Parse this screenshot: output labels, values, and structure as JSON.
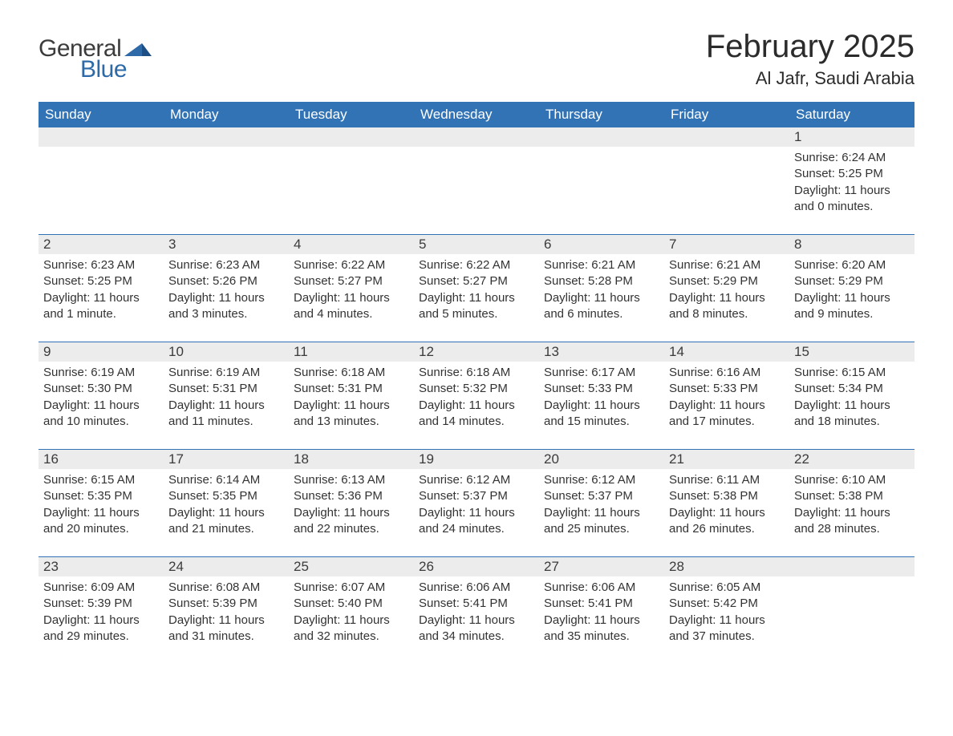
{
  "brand": {
    "word1": "General",
    "word2": "Blue",
    "word1_color": "#3c3c3c",
    "word2_color": "#2f6aa8",
    "shape_color": "#2f6aa8"
  },
  "title": {
    "month_year": "February 2025",
    "location": "Al Jafr, Saudi Arabia",
    "title_fontsize": 40,
    "location_fontsize": 22
  },
  "calendar": {
    "header_bg": "#3273b6",
    "header_fg": "#ffffff",
    "band_bg": "#ececec",
    "rule_color": "#3273b6",
    "day_headers": [
      "Sunday",
      "Monday",
      "Tuesday",
      "Wednesday",
      "Thursday",
      "Friday",
      "Saturday"
    ],
    "weeks": [
      [
        null,
        null,
        null,
        null,
        null,
        null,
        {
          "n": "1",
          "sunrise": "Sunrise: 6:24 AM",
          "sunset": "Sunset: 5:25 PM",
          "day1": "Daylight: 11 hours",
          "day2": "and 0 minutes."
        }
      ],
      [
        {
          "n": "2",
          "sunrise": "Sunrise: 6:23 AM",
          "sunset": "Sunset: 5:25 PM",
          "day1": "Daylight: 11 hours",
          "day2": "and 1 minute."
        },
        {
          "n": "3",
          "sunrise": "Sunrise: 6:23 AM",
          "sunset": "Sunset: 5:26 PM",
          "day1": "Daylight: 11 hours",
          "day2": "and 3 minutes."
        },
        {
          "n": "4",
          "sunrise": "Sunrise: 6:22 AM",
          "sunset": "Sunset: 5:27 PM",
          "day1": "Daylight: 11 hours",
          "day2": "and 4 minutes."
        },
        {
          "n": "5",
          "sunrise": "Sunrise: 6:22 AM",
          "sunset": "Sunset: 5:27 PM",
          "day1": "Daylight: 11 hours",
          "day2": "and 5 minutes."
        },
        {
          "n": "6",
          "sunrise": "Sunrise: 6:21 AM",
          "sunset": "Sunset: 5:28 PM",
          "day1": "Daylight: 11 hours",
          "day2": "and 6 minutes."
        },
        {
          "n": "7",
          "sunrise": "Sunrise: 6:21 AM",
          "sunset": "Sunset: 5:29 PM",
          "day1": "Daylight: 11 hours",
          "day2": "and 8 minutes."
        },
        {
          "n": "8",
          "sunrise": "Sunrise: 6:20 AM",
          "sunset": "Sunset: 5:29 PM",
          "day1": "Daylight: 11 hours",
          "day2": "and 9 minutes."
        }
      ],
      [
        {
          "n": "9",
          "sunrise": "Sunrise: 6:19 AM",
          "sunset": "Sunset: 5:30 PM",
          "day1": "Daylight: 11 hours",
          "day2": "and 10 minutes."
        },
        {
          "n": "10",
          "sunrise": "Sunrise: 6:19 AM",
          "sunset": "Sunset: 5:31 PM",
          "day1": "Daylight: 11 hours",
          "day2": "and 11 minutes."
        },
        {
          "n": "11",
          "sunrise": "Sunrise: 6:18 AM",
          "sunset": "Sunset: 5:31 PM",
          "day1": "Daylight: 11 hours",
          "day2": "and 13 minutes."
        },
        {
          "n": "12",
          "sunrise": "Sunrise: 6:18 AM",
          "sunset": "Sunset: 5:32 PM",
          "day1": "Daylight: 11 hours",
          "day2": "and 14 minutes."
        },
        {
          "n": "13",
          "sunrise": "Sunrise: 6:17 AM",
          "sunset": "Sunset: 5:33 PM",
          "day1": "Daylight: 11 hours",
          "day2": "and 15 minutes."
        },
        {
          "n": "14",
          "sunrise": "Sunrise: 6:16 AM",
          "sunset": "Sunset: 5:33 PM",
          "day1": "Daylight: 11 hours",
          "day2": "and 17 minutes."
        },
        {
          "n": "15",
          "sunrise": "Sunrise: 6:15 AM",
          "sunset": "Sunset: 5:34 PM",
          "day1": "Daylight: 11 hours",
          "day2": "and 18 minutes."
        }
      ],
      [
        {
          "n": "16",
          "sunrise": "Sunrise: 6:15 AM",
          "sunset": "Sunset: 5:35 PM",
          "day1": "Daylight: 11 hours",
          "day2": "and 20 minutes."
        },
        {
          "n": "17",
          "sunrise": "Sunrise: 6:14 AM",
          "sunset": "Sunset: 5:35 PM",
          "day1": "Daylight: 11 hours",
          "day2": "and 21 minutes."
        },
        {
          "n": "18",
          "sunrise": "Sunrise: 6:13 AM",
          "sunset": "Sunset: 5:36 PM",
          "day1": "Daylight: 11 hours",
          "day2": "and 22 minutes."
        },
        {
          "n": "19",
          "sunrise": "Sunrise: 6:12 AM",
          "sunset": "Sunset: 5:37 PM",
          "day1": "Daylight: 11 hours",
          "day2": "and 24 minutes."
        },
        {
          "n": "20",
          "sunrise": "Sunrise: 6:12 AM",
          "sunset": "Sunset: 5:37 PM",
          "day1": "Daylight: 11 hours",
          "day2": "and 25 minutes."
        },
        {
          "n": "21",
          "sunrise": "Sunrise: 6:11 AM",
          "sunset": "Sunset: 5:38 PM",
          "day1": "Daylight: 11 hours",
          "day2": "and 26 minutes."
        },
        {
          "n": "22",
          "sunrise": "Sunrise: 6:10 AM",
          "sunset": "Sunset: 5:38 PM",
          "day1": "Daylight: 11 hours",
          "day2": "and 28 minutes."
        }
      ],
      [
        {
          "n": "23",
          "sunrise": "Sunrise: 6:09 AM",
          "sunset": "Sunset: 5:39 PM",
          "day1": "Daylight: 11 hours",
          "day2": "and 29 minutes."
        },
        {
          "n": "24",
          "sunrise": "Sunrise: 6:08 AM",
          "sunset": "Sunset: 5:39 PM",
          "day1": "Daylight: 11 hours",
          "day2": "and 31 minutes."
        },
        {
          "n": "25",
          "sunrise": "Sunrise: 6:07 AM",
          "sunset": "Sunset: 5:40 PM",
          "day1": "Daylight: 11 hours",
          "day2": "and 32 minutes."
        },
        {
          "n": "26",
          "sunrise": "Sunrise: 6:06 AM",
          "sunset": "Sunset: 5:41 PM",
          "day1": "Daylight: 11 hours",
          "day2": "and 34 minutes."
        },
        {
          "n": "27",
          "sunrise": "Sunrise: 6:06 AM",
          "sunset": "Sunset: 5:41 PM",
          "day1": "Daylight: 11 hours",
          "day2": "and 35 minutes."
        },
        {
          "n": "28",
          "sunrise": "Sunrise: 6:05 AM",
          "sunset": "Sunset: 5:42 PM",
          "day1": "Daylight: 11 hours",
          "day2": "and 37 minutes."
        },
        null
      ]
    ]
  }
}
